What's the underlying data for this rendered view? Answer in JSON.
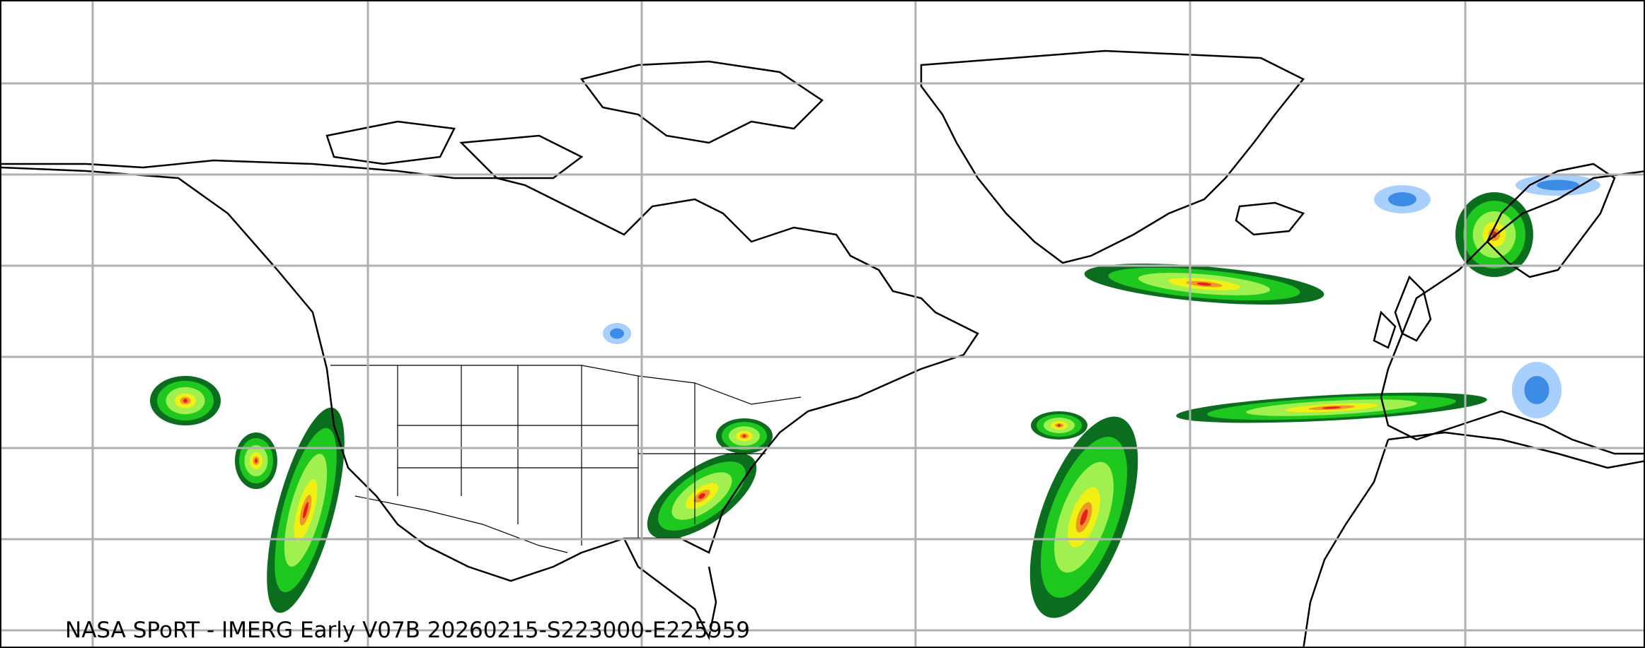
{
  "caption": "NASA SPoRT - IMERG Early V07B 20260215-S223000-E225959",
  "colors": {
    "gridline": "#b0b0b0",
    "coastline": "#000000",
    "precip_light_blue": "#a8d0ff",
    "precip_blue": "#3c8ce6",
    "precip_dark_green": "#0a6e1e",
    "precip_green": "#1ec81e",
    "precip_light_green": "#a0f050",
    "precip_yellow": "#f0f014",
    "precip_orange": "#f09628",
    "precip_red": "#e61e1e"
  }
}
